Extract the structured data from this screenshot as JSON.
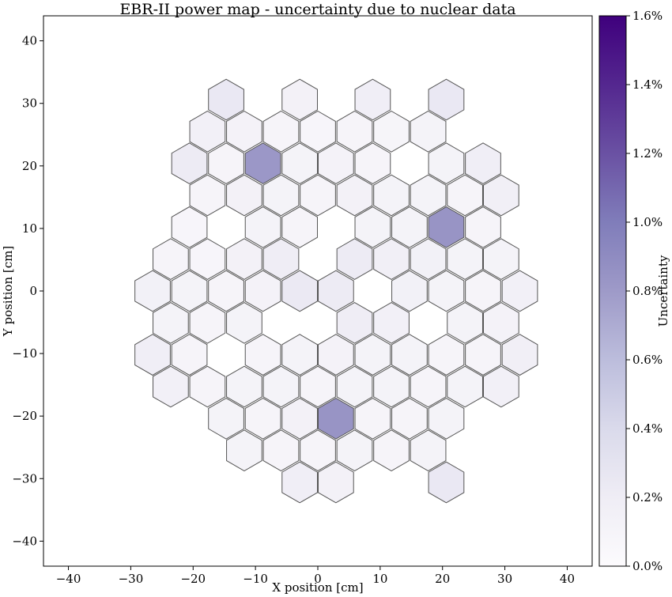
{
  "chart_data": {
    "type": "heatmap",
    "title": "EBR-II power map - uncertainty due to nuclear data",
    "xlabel": "X position [cm]",
    "ylabel": "Y position [cm]",
    "xlim": [
      -44,
      44
    ],
    "ylim": [
      -44,
      44
    ],
    "xticks": [
      -40,
      -30,
      -20,
      -10,
      0,
      10,
      20,
      30,
      40
    ],
    "yticks": [
      -40,
      -30,
      -20,
      -10,
      0,
      10,
      20,
      30,
      40
    ],
    "hex_pitch_cm": 5.89,
    "colorbar": {
      "label": "Uncertainty",
      "range": [
        0.0,
        1.6
      ],
      "ticks": [
        "0.0%",
        "0.2%",
        "0.4%",
        "0.6%",
        "0.8%",
        "1.0%",
        "1.2%",
        "1.4%",
        "1.6%"
      ],
      "colormap": "Purples",
      "colors": [
        "#fcfbfd",
        "#efedf5",
        "#dadaeb",
        "#bcbddc",
        "#9e9ac8",
        "#807dba",
        "#6a51a3",
        "#54278f",
        "#3f007d"
      ]
    },
    "cells": [
      {
        "x": -14.7,
        "y": 30.6,
        "value": 0.25
      },
      {
        "x": -2.9,
        "y": 30.6,
        "value": 0.14
      },
      {
        "x": 8.8,
        "y": 30.6,
        "value": 0.18
      },
      {
        "x": 20.6,
        "y": 30.6,
        "value": 0.25
      },
      {
        "x": -17.7,
        "y": 25.5,
        "value": 0.16
      },
      {
        "x": -11.8,
        "y": 25.5,
        "value": 0.13
      },
      {
        "x": -5.9,
        "y": 25.5,
        "value": 0.1
      },
      {
        "x": 0.0,
        "y": 25.5,
        "value": 0.08
      },
      {
        "x": 5.9,
        "y": 25.5,
        "value": 0.1
      },
      {
        "x": 11.8,
        "y": 25.5,
        "value": 0.09
      },
      {
        "x": 17.7,
        "y": 25.5,
        "value": 0.12
      },
      {
        "x": -20.6,
        "y": 20.4,
        "value": 0.22
      },
      {
        "x": -14.7,
        "y": 20.4,
        "value": 0.1
      },
      {
        "x": -8.8,
        "y": 20.4,
        "value": 0.82
      },
      {
        "x": -2.9,
        "y": 20.4,
        "value": 0.12
      },
      {
        "x": 2.9,
        "y": 20.4,
        "value": 0.13
      },
      {
        "x": 8.8,
        "y": 20.4,
        "value": 0.1
      },
      {
        "x": 20.6,
        "y": 20.4,
        "value": 0.12
      },
      {
        "x": 26.5,
        "y": 20.4,
        "value": 0.18
      },
      {
        "x": -17.7,
        "y": 15.3,
        "value": 0.1
      },
      {
        "x": -11.8,
        "y": 15.3,
        "value": 0.14
      },
      {
        "x": -5.9,
        "y": 15.3,
        "value": 0.12
      },
      {
        "x": 0.0,
        "y": 15.3,
        "value": 0.1
      },
      {
        "x": 5.9,
        "y": 15.3,
        "value": 0.14
      },
      {
        "x": 11.8,
        "y": 15.3,
        "value": 0.12
      },
      {
        "x": 17.7,
        "y": 15.3,
        "value": 0.12
      },
      {
        "x": 23.6,
        "y": 15.3,
        "value": 0.1
      },
      {
        "x": 29.4,
        "y": 15.3,
        "value": 0.17
      },
      {
        "x": -20.6,
        "y": 10.2,
        "value": 0.08
      },
      {
        "x": -8.8,
        "y": 10.2,
        "value": 0.12
      },
      {
        "x": -2.9,
        "y": 10.2,
        "value": 0.1
      },
      {
        "x": 8.8,
        "y": 10.2,
        "value": 0.12
      },
      {
        "x": 14.7,
        "y": 10.2,
        "value": 0.12
      },
      {
        "x": 20.6,
        "y": 10.2,
        "value": 0.84
      },
      {
        "x": 26.5,
        "y": 10.2,
        "value": 0.1
      },
      {
        "x": -23.6,
        "y": 5.1,
        "value": 0.1
      },
      {
        "x": -17.7,
        "y": 5.1,
        "value": 0.08
      },
      {
        "x": -11.8,
        "y": 5.1,
        "value": 0.14
      },
      {
        "x": -5.9,
        "y": 5.1,
        "value": 0.2
      },
      {
        "x": 5.9,
        "y": 5.1,
        "value": 0.22
      },
      {
        "x": 11.8,
        "y": 5.1,
        "value": 0.17
      },
      {
        "x": 17.7,
        "y": 5.1,
        "value": 0.15
      },
      {
        "x": 23.6,
        "y": 5.1,
        "value": 0.12
      },
      {
        "x": 29.4,
        "y": 5.1,
        "value": 0.12
      },
      {
        "x": -26.5,
        "y": 0.0,
        "value": 0.15
      },
      {
        "x": -20.6,
        "y": 0.0,
        "value": 0.12
      },
      {
        "x": -14.7,
        "y": 0.0,
        "value": 0.1
      },
      {
        "x": -8.8,
        "y": 0.0,
        "value": 0.13
      },
      {
        "x": -2.9,
        "y": 0.0,
        "value": 0.24
      },
      {
        "x": 2.9,
        "y": 0.0,
        "value": 0.22
      },
      {
        "x": 14.7,
        "y": 0.0,
        "value": 0.15
      },
      {
        "x": 20.6,
        "y": 0.0,
        "value": 0.12
      },
      {
        "x": 26.5,
        "y": 0.0,
        "value": 0.1
      },
      {
        "x": 32.4,
        "y": 0.0,
        "value": 0.16
      },
      {
        "x": -23.6,
        "y": -5.1,
        "value": 0.12
      },
      {
        "x": -17.7,
        "y": -5.1,
        "value": 0.1
      },
      {
        "x": -11.8,
        "y": -5.1,
        "value": 0.12
      },
      {
        "x": 5.9,
        "y": -5.1,
        "value": 0.2
      },
      {
        "x": 11.8,
        "y": -5.1,
        "value": 0.16
      },
      {
        "x": 23.6,
        "y": -5.1,
        "value": 0.12
      },
      {
        "x": 29.4,
        "y": -5.1,
        "value": 0.13
      },
      {
        "x": -26.5,
        "y": -10.2,
        "value": 0.18
      },
      {
        "x": -20.6,
        "y": -10.2,
        "value": 0.1
      },
      {
        "x": -8.8,
        "y": -10.2,
        "value": 0.1
      },
      {
        "x": -2.9,
        "y": -10.2,
        "value": 0.12
      },
      {
        "x": 2.9,
        "y": -10.2,
        "value": 0.13
      },
      {
        "x": 8.8,
        "y": -10.2,
        "value": 0.12
      },
      {
        "x": 14.7,
        "y": -10.2,
        "value": 0.12
      },
      {
        "x": 20.6,
        "y": -10.2,
        "value": 0.1
      },
      {
        "x": 26.5,
        "y": -10.2,
        "value": 0.1
      },
      {
        "x": 32.4,
        "y": -10.2,
        "value": 0.17
      },
      {
        "x": -23.6,
        "y": -15.3,
        "value": 0.16
      },
      {
        "x": -17.7,
        "y": -15.3,
        "value": 0.1
      },
      {
        "x": -11.8,
        "y": -15.3,
        "value": 0.12
      },
      {
        "x": -5.9,
        "y": -15.3,
        "value": 0.12
      },
      {
        "x": 0.0,
        "y": -15.3,
        "value": 0.1
      },
      {
        "x": 5.9,
        "y": -15.3,
        "value": 0.12
      },
      {
        "x": 11.8,
        "y": -15.3,
        "value": 0.12
      },
      {
        "x": 17.7,
        "y": -15.3,
        "value": 0.1
      },
      {
        "x": 23.6,
        "y": -15.3,
        "value": 0.12
      },
      {
        "x": 29.4,
        "y": -15.3,
        "value": 0.16
      },
      {
        "x": -14.7,
        "y": -20.4,
        "value": 0.12
      },
      {
        "x": -8.8,
        "y": -20.4,
        "value": 0.1
      },
      {
        "x": -2.9,
        "y": -20.4,
        "value": 0.14
      },
      {
        "x": 2.9,
        "y": -20.4,
        "value": 0.84
      },
      {
        "x": 8.8,
        "y": -20.4,
        "value": 0.1
      },
      {
        "x": 14.7,
        "y": -20.4,
        "value": 0.1
      },
      {
        "x": 20.6,
        "y": -20.4,
        "value": 0.12
      },
      {
        "x": -11.8,
        "y": -25.5,
        "value": 0.12
      },
      {
        "x": -5.9,
        "y": -25.5,
        "value": 0.1
      },
      {
        "x": 0.0,
        "y": -25.5,
        "value": 0.1
      },
      {
        "x": 5.9,
        "y": -25.5,
        "value": 0.12
      },
      {
        "x": 11.8,
        "y": -25.5,
        "value": 0.1
      },
      {
        "x": 17.7,
        "y": -25.5,
        "value": 0.12
      },
      {
        "x": -2.9,
        "y": -30.6,
        "value": 0.18
      },
      {
        "x": 2.9,
        "y": -30.6,
        "value": 0.14
      },
      {
        "x": 20.6,
        "y": -30.6,
        "value": 0.25
      }
    ]
  }
}
